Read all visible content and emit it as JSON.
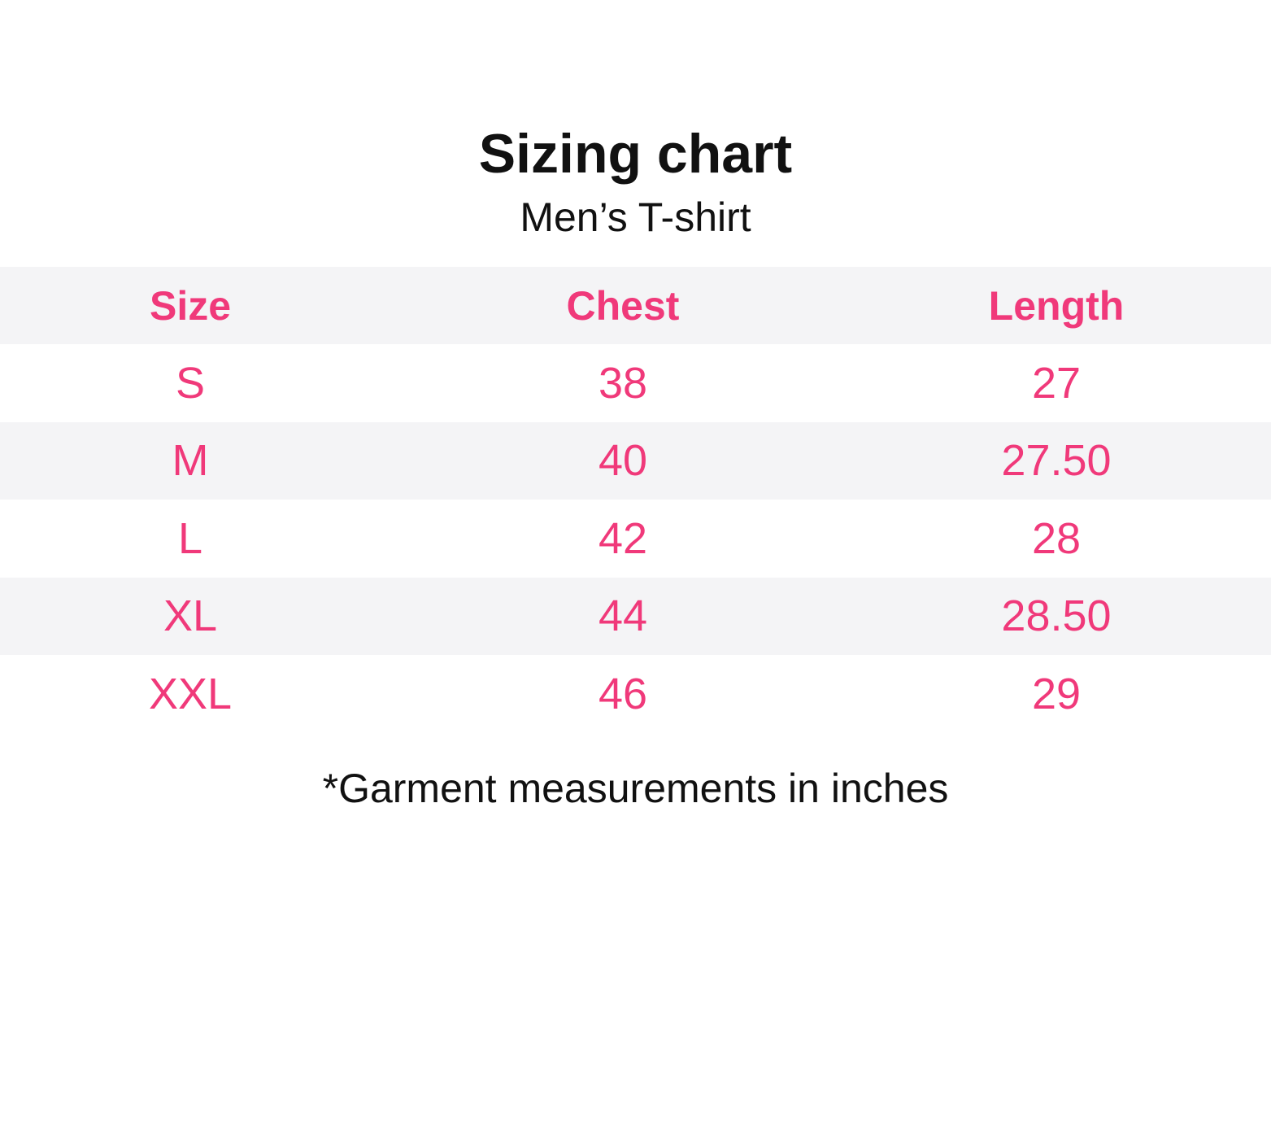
{
  "title": "Sizing chart",
  "subtitle": "Men’s T-shirt",
  "headers": [
    "Size",
    "Chest",
    "Length"
  ],
  "rows": [
    [
      "S",
      "38",
      "27"
    ],
    [
      "M",
      "40",
      "27.50"
    ],
    [
      "L",
      "42",
      "28"
    ],
    [
      "XL",
      "44",
      "28.50"
    ],
    [
      "XXL",
      "46",
      "29"
    ]
  ],
  "note": "*Garment measurements in inches",
  "colors": {
    "accent": "#f0397a",
    "row_shade": "#f4f4f6",
    "text": "#111111"
  }
}
